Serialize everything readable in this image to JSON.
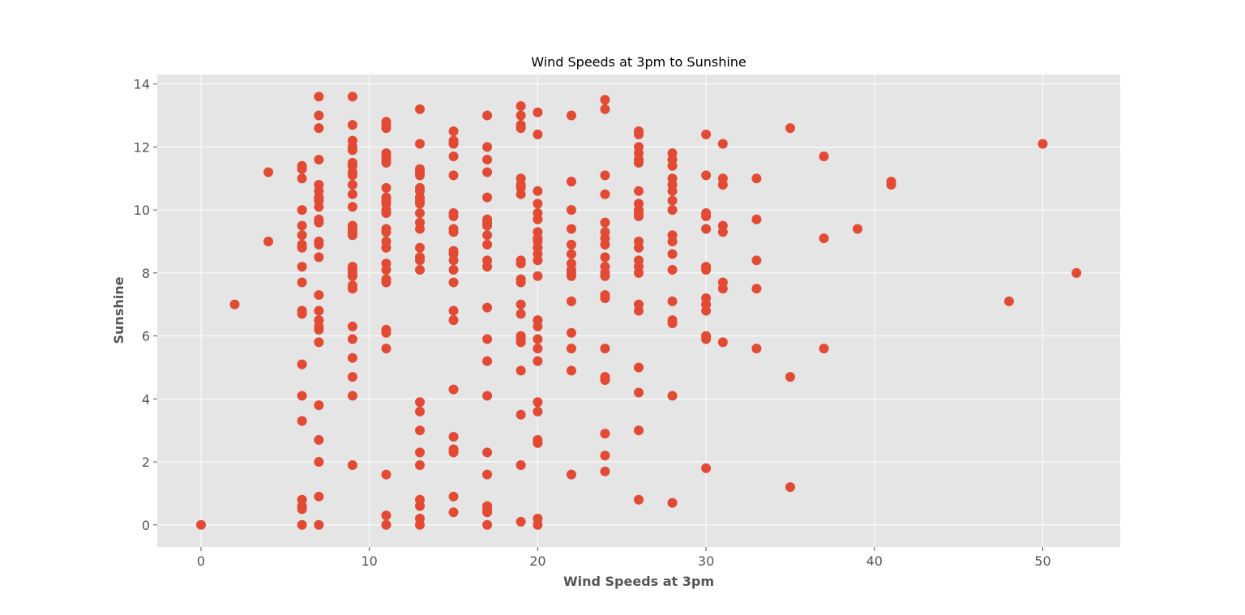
{
  "chart_data": {
    "type": "scatter",
    "title": "Wind Speeds at 3pm to Sunshine",
    "xlabel": "Wind Speeds at 3pm",
    "ylabel": "Sunshine",
    "xlim": [
      -2.6,
      54.6
    ],
    "ylim": [
      -0.7,
      14.3
    ],
    "xticks": [
      0,
      10,
      20,
      30,
      40,
      50
    ],
    "yticks": [
      0,
      2,
      4,
      6,
      8,
      10,
      12,
      14
    ],
    "grid": true,
    "colors": {
      "background": "#e5e5e5",
      "point": "#e24a33"
    },
    "points": [
      [
        0,
        0
      ],
      [
        2,
        7.0
      ],
      [
        4,
        11.2
      ],
      [
        4,
        9.0
      ],
      [
        6,
        11.4
      ],
      [
        6,
        11.3
      ],
      [
        6,
        11.0
      ],
      [
        6,
        10.0
      ],
      [
        6,
        9.5
      ],
      [
        6,
        9.2
      ],
      [
        6,
        8.9
      ],
      [
        6,
        8.8
      ],
      [
        6,
        8.2
      ],
      [
        6,
        7.7
      ],
      [
        6,
        6.8
      ],
      [
        6,
        6.7
      ],
      [
        6,
        5.1
      ],
      [
        6,
        4.1
      ],
      [
        6,
        3.3
      ],
      [
        6,
        0.8
      ],
      [
        6,
        0.6
      ],
      [
        6,
        0.5
      ],
      [
        6,
        0
      ],
      [
        7,
        13.6
      ],
      [
        7,
        13.0
      ],
      [
        7,
        12.6
      ],
      [
        7,
        11.6
      ],
      [
        7,
        10.8
      ],
      [
        7,
        10.6
      ],
      [
        7,
        10.4
      ],
      [
        7,
        10.3
      ],
      [
        7,
        10.1
      ],
      [
        7,
        9.7
      ],
      [
        7,
        9.6
      ],
      [
        7,
        9.0
      ],
      [
        7,
        8.9
      ],
      [
        7,
        8.5
      ],
      [
        7,
        7.3
      ],
      [
        7,
        6.8
      ],
      [
        7,
        6.5
      ],
      [
        7,
        6.3
      ],
      [
        7,
        6.2
      ],
      [
        7,
        5.8
      ],
      [
        7,
        3.8
      ],
      [
        7,
        2.7
      ],
      [
        7,
        2.0
      ],
      [
        7,
        0.9
      ],
      [
        7,
        0
      ],
      [
        9,
        13.6
      ],
      [
        9,
        12.7
      ],
      [
        9,
        12.2
      ],
      [
        9,
        12.0
      ],
      [
        9,
        11.9
      ],
      [
        9,
        11.5
      ],
      [
        9,
        11.4
      ],
      [
        9,
        11.2
      ],
      [
        9,
        11.1
      ],
      [
        9,
        10.8
      ],
      [
        9,
        10.5
      ],
      [
        9,
        10.1
      ],
      [
        9,
        9.5
      ],
      [
        9,
        9.4
      ],
      [
        9,
        9.3
      ],
      [
        9,
        9.2
      ],
      [
        9,
        8.2
      ],
      [
        9,
        8.1
      ],
      [
        9,
        8.0
      ],
      [
        9,
        7.9
      ],
      [
        9,
        7.6
      ],
      [
        9,
        7.5
      ],
      [
        9,
        6.3
      ],
      [
        9,
        5.9
      ],
      [
        9,
        5.3
      ],
      [
        9,
        4.7
      ],
      [
        9,
        4.1
      ],
      [
        9,
        1.9
      ],
      [
        11,
        12.8
      ],
      [
        11,
        12.7
      ],
      [
        11,
        12.6
      ],
      [
        11,
        11.8
      ],
      [
        11,
        11.7
      ],
      [
        11,
        11.6
      ],
      [
        11,
        11.5
      ],
      [
        11,
        10.7
      ],
      [
        11,
        10.4
      ],
      [
        11,
        10.3
      ],
      [
        11,
        10.2
      ],
      [
        11,
        10.0
      ],
      [
        11,
        9.9
      ],
      [
        11,
        9.4
      ],
      [
        11,
        9.3
      ],
      [
        11,
        9.0
      ],
      [
        11,
        8.8
      ],
      [
        11,
        8.3
      ],
      [
        11,
        8.1
      ],
      [
        11,
        7.8
      ],
      [
        11,
        7.7
      ],
      [
        11,
        6.2
      ],
      [
        11,
        6.1
      ],
      [
        11,
        5.6
      ],
      [
        11,
        1.6
      ],
      [
        11,
        0.3
      ],
      [
        11,
        0
      ],
      [
        13,
        13.2
      ],
      [
        13,
        12.1
      ],
      [
        13,
        11.3
      ],
      [
        13,
        11.2
      ],
      [
        13,
        11.1
      ],
      [
        13,
        10.7
      ],
      [
        13,
        10.6
      ],
      [
        13,
        10.4
      ],
      [
        13,
        10.3
      ],
      [
        13,
        10.2
      ],
      [
        13,
        9.9
      ],
      [
        13,
        9.6
      ],
      [
        13,
        9.4
      ],
      [
        13,
        8.8
      ],
      [
        13,
        8.5
      ],
      [
        13,
        8.4
      ],
      [
        13,
        8.1
      ],
      [
        13,
        3.9
      ],
      [
        13,
        3.6
      ],
      [
        13,
        3.0
      ],
      [
        13,
        2.3
      ],
      [
        13,
        1.9
      ],
      [
        13,
        0.8
      ],
      [
        13,
        0.6
      ],
      [
        13,
        0.2
      ],
      [
        13,
        0
      ],
      [
        15,
        12.5
      ],
      [
        15,
        12.2
      ],
      [
        15,
        12.1
      ],
      [
        15,
        11.7
      ],
      [
        15,
        11.1
      ],
      [
        15,
        9.9
      ],
      [
        15,
        9.8
      ],
      [
        15,
        9.4
      ],
      [
        15,
        9.3
      ],
      [
        15,
        8.7
      ],
      [
        15,
        8.6
      ],
      [
        15,
        8.4
      ],
      [
        15,
        8.1
      ],
      [
        15,
        7.7
      ],
      [
        15,
        6.8
      ],
      [
        15,
        6.5
      ],
      [
        15,
        4.3
      ],
      [
        15,
        2.8
      ],
      [
        15,
        2.4
      ],
      [
        15,
        2.3
      ],
      [
        15,
        0.9
      ],
      [
        15,
        0.4
      ],
      [
        17,
        13.0
      ],
      [
        17,
        12.0
      ],
      [
        17,
        11.6
      ],
      [
        17,
        11.2
      ],
      [
        17,
        10.4
      ],
      [
        17,
        9.7
      ],
      [
        17,
        9.6
      ],
      [
        17,
        9.5
      ],
      [
        17,
        9.2
      ],
      [
        17,
        8.9
      ],
      [
        17,
        8.4
      ],
      [
        17,
        8.2
      ],
      [
        17,
        6.9
      ],
      [
        17,
        5.9
      ],
      [
        17,
        5.2
      ],
      [
        17,
        4.1
      ],
      [
        17,
        2.3
      ],
      [
        17,
        1.6
      ],
      [
        17,
        0.6
      ],
      [
        17,
        0.5
      ],
      [
        17,
        0.4
      ],
      [
        17,
        0
      ],
      [
        19,
        13.3
      ],
      [
        19,
        13.0
      ],
      [
        19,
        12.7
      ],
      [
        19,
        12.6
      ],
      [
        19,
        11.0
      ],
      [
        19,
        10.8
      ],
      [
        19,
        10.7
      ],
      [
        19,
        10.5
      ],
      [
        19,
        8.4
      ],
      [
        19,
        8.3
      ],
      [
        19,
        7.8
      ],
      [
        19,
        7.7
      ],
      [
        19,
        7.0
      ],
      [
        19,
        6.7
      ],
      [
        19,
        6.0
      ],
      [
        19,
        5.9
      ],
      [
        19,
        5.8
      ],
      [
        19,
        4.9
      ],
      [
        19,
        3.5
      ],
      [
        19,
        1.9
      ],
      [
        19,
        0.1
      ],
      [
        20,
        13.1
      ],
      [
        20,
        12.4
      ],
      [
        20,
        10.6
      ],
      [
        20,
        10.2
      ],
      [
        20,
        9.9
      ],
      [
        20,
        9.7
      ],
      [
        20,
        9.3
      ],
      [
        20,
        9.1
      ],
      [
        20,
        9.0
      ],
      [
        20,
        8.8
      ],
      [
        20,
        8.6
      ],
      [
        20,
        8.4
      ],
      [
        20,
        7.9
      ],
      [
        20,
        6.5
      ],
      [
        20,
        6.3
      ],
      [
        20,
        5.9
      ],
      [
        20,
        5.6
      ],
      [
        20,
        5.2
      ],
      [
        20,
        3.9
      ],
      [
        20,
        3.6
      ],
      [
        20,
        2.7
      ],
      [
        20,
        2.6
      ],
      [
        20,
        0.2
      ],
      [
        20,
        0
      ],
      [
        22,
        13.0
      ],
      [
        22,
        10.9
      ],
      [
        22,
        10.0
      ],
      [
        22,
        9.4
      ],
      [
        22,
        8.9
      ],
      [
        22,
        8.6
      ],
      [
        22,
        8.3
      ],
      [
        22,
        8.1
      ],
      [
        22,
        8.0
      ],
      [
        22,
        7.9
      ],
      [
        22,
        7.1
      ],
      [
        22,
        6.1
      ],
      [
        22,
        5.6
      ],
      [
        22,
        4.9
      ],
      [
        22,
        1.6
      ],
      [
        24,
        13.5
      ],
      [
        24,
        13.2
      ],
      [
        24,
        11.1
      ],
      [
        24,
        10.5
      ],
      [
        24,
        9.6
      ],
      [
        24,
        9.3
      ],
      [
        24,
        9.1
      ],
      [
        24,
        8.9
      ],
      [
        24,
        8.5
      ],
      [
        24,
        8.2
      ],
      [
        24,
        8.0
      ],
      [
        24,
        7.9
      ],
      [
        24,
        7.3
      ],
      [
        24,
        7.2
      ],
      [
        24,
        5.6
      ],
      [
        24,
        4.7
      ],
      [
        24,
        4.6
      ],
      [
        24,
        2.9
      ],
      [
        24,
        2.2
      ],
      [
        24,
        1.7
      ],
      [
        26,
        12.5
      ],
      [
        26,
        12.4
      ],
      [
        26,
        12.0
      ],
      [
        26,
        11.8
      ],
      [
        26,
        11.6
      ],
      [
        26,
        11.5
      ],
      [
        26,
        10.6
      ],
      [
        26,
        10.2
      ],
      [
        26,
        10.0
      ],
      [
        26,
        9.9
      ],
      [
        26,
        9.8
      ],
      [
        26,
        9.0
      ],
      [
        26,
        8.8
      ],
      [
        26,
        8.4
      ],
      [
        26,
        8.2
      ],
      [
        26,
        8.0
      ],
      [
        26,
        7.0
      ],
      [
        26,
        6.8
      ],
      [
        26,
        5.0
      ],
      [
        26,
        4.2
      ],
      [
        26,
        3.0
      ],
      [
        26,
        0.8
      ],
      [
        28,
        11.8
      ],
      [
        28,
        11.6
      ],
      [
        28,
        11.4
      ],
      [
        28,
        11.0
      ],
      [
        28,
        10.8
      ],
      [
        28,
        10.6
      ],
      [
        28,
        10.3
      ],
      [
        28,
        10.0
      ],
      [
        28,
        9.2
      ],
      [
        28,
        9.0
      ],
      [
        28,
        8.6
      ],
      [
        28,
        8.1
      ],
      [
        28,
        7.1
      ],
      [
        28,
        6.5
      ],
      [
        28,
        6.4
      ],
      [
        28,
        4.1
      ],
      [
        28,
        0.7
      ],
      [
        30,
        12.4
      ],
      [
        30,
        11.1
      ],
      [
        30,
        9.9
      ],
      [
        30,
        9.8
      ],
      [
        30,
        9.4
      ],
      [
        30,
        8.2
      ],
      [
        30,
        8.1
      ],
      [
        30,
        7.2
      ],
      [
        30,
        7.0
      ],
      [
        30,
        6.8
      ],
      [
        30,
        6.0
      ],
      [
        30,
        5.9
      ],
      [
        30,
        1.8
      ],
      [
        31,
        12.1
      ],
      [
        31,
        11.0
      ],
      [
        31,
        10.8
      ],
      [
        31,
        9.5
      ],
      [
        31,
        9.3
      ],
      [
        31,
        7.7
      ],
      [
        31,
        7.5
      ],
      [
        31,
        5.8
      ],
      [
        33,
        11.0
      ],
      [
        33,
        9.7
      ],
      [
        33,
        8.4
      ],
      [
        33,
        7.5
      ],
      [
        33,
        5.6
      ],
      [
        35,
        12.6
      ],
      [
        35,
        4.7
      ],
      [
        35,
        1.2
      ],
      [
        37,
        11.7
      ],
      [
        37,
        9.1
      ],
      [
        37,
        5.6
      ],
      [
        39,
        9.4
      ],
      [
        41,
        10.9
      ],
      [
        41,
        10.8
      ],
      [
        48,
        7.1
      ],
      [
        50,
        12.1
      ],
      [
        52,
        8.0
      ]
    ]
  }
}
